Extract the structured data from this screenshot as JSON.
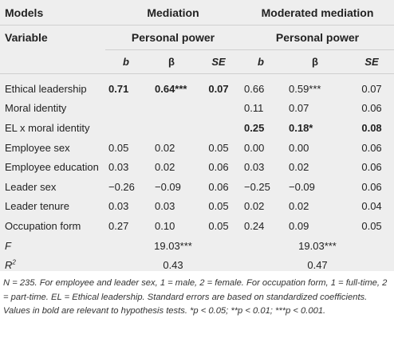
{
  "header": {
    "models_label": "Models",
    "variable_label": "Variable",
    "mediation_label": "Mediation",
    "moderated_label": "Moderated mediation",
    "outcome_left": "Personal power",
    "outcome_right": "Personal power",
    "col_b": "b",
    "col_beta": "β",
    "col_se": "SE"
  },
  "rows": [
    {
      "label": "Ethical leadership",
      "m": [
        "0.71",
        "0.64***",
        "0.07"
      ],
      "mm": [
        "0.66",
        "0.59***",
        "0.07"
      ],
      "bold_m": true,
      "bold_mm": false
    },
    {
      "label": "Moral identity",
      "m": [
        "",
        "",
        ""
      ],
      "mm": [
        "0.11",
        "0.07",
        "0.06"
      ],
      "bold_m": false,
      "bold_mm": false
    },
    {
      "label": "EL x moral identity",
      "m": [
        "",
        "",
        ""
      ],
      "mm": [
        "0.25",
        "0.18*",
        "0.08"
      ],
      "bold_m": false,
      "bold_mm": true
    },
    {
      "label": "Employee sex",
      "m": [
        "0.05",
        "0.02",
        "0.05"
      ],
      "mm": [
        "0.00",
        "0.00",
        "0.06"
      ],
      "bold_m": false,
      "bold_mm": false
    },
    {
      "label": "Employee education",
      "m": [
        "0.03",
        "0.02",
        "0.06"
      ],
      "mm": [
        "0.03",
        "0.02",
        "0.06"
      ],
      "bold_m": false,
      "bold_mm": false
    },
    {
      "label": "Leader sex",
      "m": [
        "−0.26",
        "−0.09",
        "0.06"
      ],
      "mm": [
        "−0.25",
        "−0.09",
        "0.06"
      ],
      "bold_m": false,
      "bold_mm": false
    },
    {
      "label": "Leader tenure",
      "m": [
        "0.03",
        "0.03",
        "0.05"
      ],
      "mm": [
        "0.02",
        "0.02",
        "0.04"
      ],
      "bold_m": false,
      "bold_mm": false
    },
    {
      "label": "Occupation form",
      "m": [
        "0.27",
        "0.10",
        "0.05"
      ],
      "mm": [
        "0.24",
        "0.09",
        "0.05"
      ],
      "bold_m": false,
      "bold_mm": false
    }
  ],
  "f_row": {
    "label": "F",
    "m": "19.03***",
    "mm": "19.03***"
  },
  "r2_row": {
    "label": "R",
    "sup": "2",
    "m": "0.43",
    "mm": "0.47"
  },
  "footnote": "N = 235. For employee and leader sex, 1 = male, 2 = female. For occupation form, 1 = full-time, 2 = part-time. EL = Ethical leadership. Standard errors are based on standardized coefficients. Values in bold are relevant to hypothesis tests. *p < 0.05; **p < 0.01; ***p < 0.001."
}
